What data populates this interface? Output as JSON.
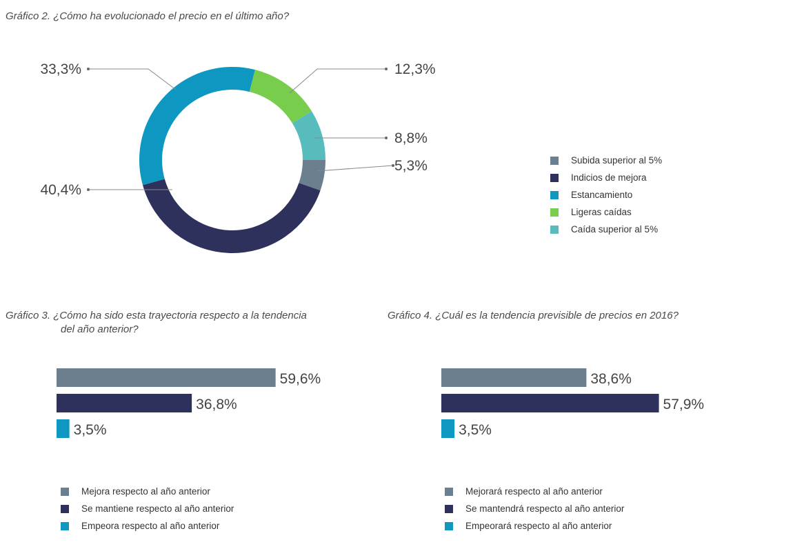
{
  "chart_data": [
    {
      "type": "pie",
      "title": "Gráfico 2. ¿Cómo ha evolucionado el precio en el último año?",
      "categories": [
        "Subida superior al 5%",
        "Indicios de mejora",
        "Estancamiento",
        "Ligeras caídas",
        "Caída superior al 5%"
      ],
      "values": [
        5.3,
        40.4,
        33.3,
        12.3,
        8.8
      ],
      "labels": [
        "5,3%",
        "40,4%",
        "33,3%",
        "12,3%",
        "8,8%"
      ],
      "colors": [
        "#6b7f8f",
        "#2e315c",
        "#0e97c0",
        "#78cd4c",
        "#58bcbd"
      ],
      "donut": true,
      "legend_position": "right"
    },
    {
      "type": "bar",
      "orientation": "horizontal",
      "title": "Gráfico 3. ¿Cómo ha sido esta trayectoria respecto a la tendencia",
      "title_line2": "del año anterior?",
      "categories": [
        "Mejora respecto al año anterior",
        "Se mantiene respecto al año anterior",
        "Empeora respecto al año anterior"
      ],
      "values": [
        59.6,
        36.8,
        3.5
      ],
      "labels": [
        "59,6%",
        "36,8%",
        "3,5%"
      ],
      "colors": [
        "#6b7f8f",
        "#2e315c",
        "#0e97c0"
      ],
      "legend_position": "bottom"
    },
    {
      "type": "bar",
      "orientation": "horizontal",
      "title": "Gráfico 4. ¿Cuál es la tendencia previsible de precios en 2016?",
      "categories": [
        "Mejorará respecto al año anterior",
        "Se mantendrá respecto al año anterior",
        "Empeorará respecto al año anterior"
      ],
      "values": [
        38.6,
        57.9,
        3.5
      ],
      "labels": [
        "38,6%",
        "57,9%",
        "3,5%"
      ],
      "colors": [
        "#6b7f8f",
        "#2e315c",
        "#0e97c0"
      ],
      "legend_position": "bottom"
    }
  ]
}
